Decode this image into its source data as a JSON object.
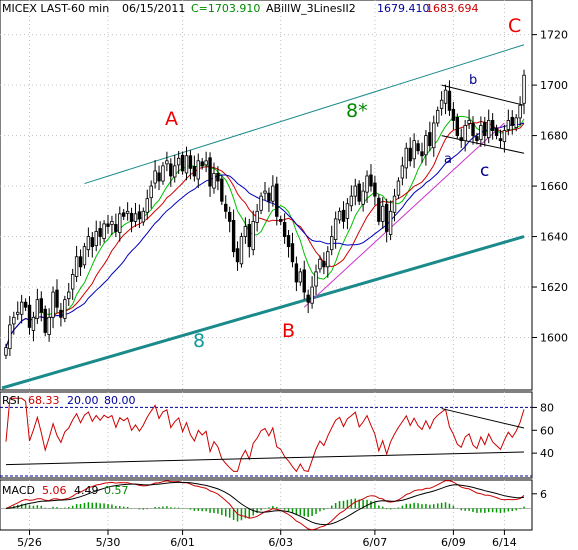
{
  "header": {
    "symbol": "MICEX LAST-60 min",
    "date": "06/15/2011",
    "close": "C=1703.910",
    "indicator_name": "ABillW_3LinesII2",
    "indicator_value1": "1679.410",
    "indicator_value2": "1683.694"
  },
  "colors": {
    "bull_candle": "#ffffff",
    "bear_candle": "#000000",
    "ma_green": "#00c000",
    "ma_red": "#d00000",
    "ma_blue": "#0000c0",
    "channel_teal": "#1a8a8a",
    "trend_magenta": "#cc33cc",
    "rsi_line": "#cc0000",
    "macd_line": "#cc0000",
    "signal_line": "#000000",
    "hist": "#009900",
    "grid": "#c0c0c0",
    "level_dash": "#000099",
    "wave_red": "#ee0000",
    "wave_green": "#008800",
    "wave_blue": "#000088",
    "wave_teal": "#119999"
  },
  "annotations": {
    "A": "A",
    "B": "B",
    "C": "C",
    "eight": "8",
    "eight_star": "8*",
    "a": "a",
    "b": "b",
    "c": "c"
  },
  "chart_data": [
    {
      "type": "candlestick",
      "title": "MICEX LAST-60 min",
      "x_tick_labels": [
        "5/26",
        "5/30",
        "6/01",
        "6/03",
        "6/07",
        "6/09",
        "6/14"
      ],
      "y_tick_labels": [
        "1600",
        "1620",
        "1640",
        "1660",
        "1680",
        "1700",
        "1720"
      ],
      "ylim": [
        1580,
        1725
      ],
      "grid": true,
      "close": [
        1596,
        1605,
        1608,
        1610,
        1614,
        1612,
        1604,
        1608,
        1615,
        1610,
        1602,
        1608,
        1618,
        1612,
        1608,
        1615,
        1618,
        1625,
        1632,
        1628,
        1636,
        1640,
        1636,
        1642,
        1640,
        1645,
        1644,
        1646,
        1642,
        1649,
        1648,
        1650,
        1646,
        1649,
        1647,
        1650,
        1655,
        1660,
        1666,
        1662,
        1668,
        1670,
        1664,
        1668,
        1671,
        1666,
        1672,
        1667,
        1664,
        1670,
        1668,
        1670,
        1660,
        1665,
        1662,
        1654,
        1650,
        1646,
        1634,
        1630,
        1640,
        1644,
        1636,
        1646,
        1650,
        1656,
        1658,
        1654,
        1660,
        1648,
        1646,
        1640,
        1636,
        1630,
        1622,
        1626,
        1618,
        1614,
        1620,
        1626,
        1631,
        1628,
        1634,
        1640,
        1647,
        1650,
        1646,
        1653,
        1656,
        1660,
        1654,
        1658,
        1664,
        1660,
        1656,
        1646,
        1652,
        1642,
        1650,
        1656,
        1662,
        1668,
        1675,
        1670,
        1678,
        1674,
        1672,
        1680,
        1676,
        1685,
        1690,
        1694,
        1698,
        1690,
        1686,
        1680,
        1678,
        1684,
        1686,
        1680,
        1678,
        1684,
        1680,
        1686,
        1682,
        1680,
        1678,
        1682,
        1686,
        1684,
        1687,
        1692,
        1703.91
      ],
      "macd": {
        "line_value": "5.06",
        "signal_value": "4.49",
        "hist_value": "0.57",
        "y_tick_labels": [
          "6"
        ]
      },
      "rsi": {
        "value": "68.33",
        "levels": [
          "20.00",
          "80.00"
        ],
        "y_tick_labels": [
          "40",
          "60",
          "80"
        ]
      }
    }
  ]
}
